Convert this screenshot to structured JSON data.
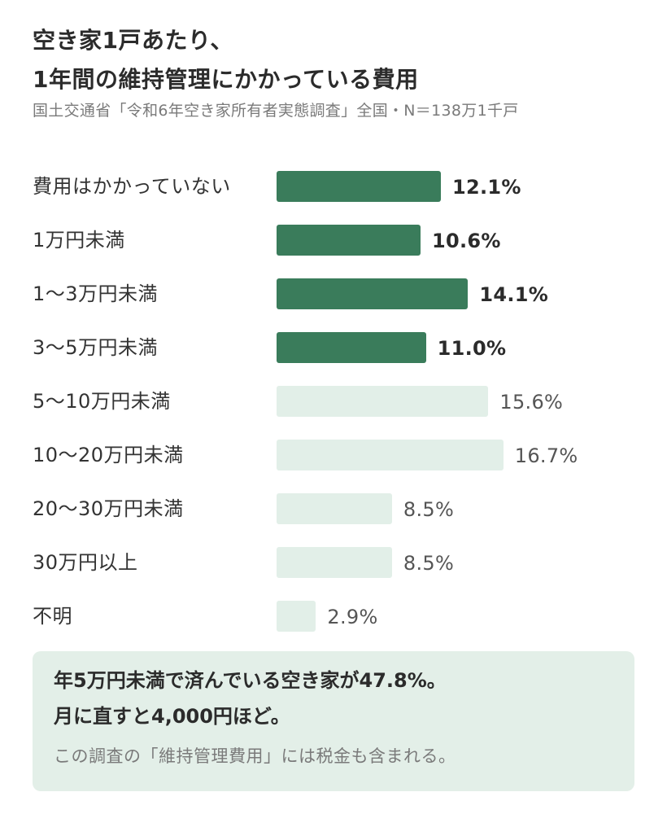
{
  "header": {
    "title_line1": "空き家1戸あたり、",
    "title_line2": "1年間の維持管理にかかっている費用",
    "source": "国土交通省「令和6年空き家所有者実態調査」全国・N＝138万1千戸"
  },
  "chart_data": {
    "type": "bar",
    "orientation": "horizontal",
    "categories": [
      "費用はかかっていない",
      "1万円未満",
      "1〜3万円未満",
      "3〜5万円未満",
      "5〜10万円未満",
      "10〜20万円未満",
      "20〜30万円未満",
      "30万円以上",
      "不明"
    ],
    "values": [
      12.1,
      10.6,
      14.1,
      11.0,
      15.6,
      16.7,
      8.5,
      8.5,
      2.9
    ],
    "value_labels": [
      "12.1%",
      "10.6%",
      "14.1%",
      "11.0%",
      "15.6%",
      "16.7%",
      "8.5%",
      "8.5%",
      "2.9%"
    ],
    "highlighted": [
      true,
      true,
      true,
      true,
      false,
      false,
      false,
      false,
      false
    ],
    "unit": "%",
    "xlim": [
      0,
      20
    ],
    "grid": false,
    "colors": {
      "highlight": "#3a7c5b",
      "muted": "#e2efe8"
    }
  },
  "callout": {
    "line1": "年5万円未満で済んでいる空き家が47.8%。",
    "line2": "月に直すと4,000円ほど。",
    "note": "この調査の「維持管理費用」には税金も含まれる。"
  }
}
